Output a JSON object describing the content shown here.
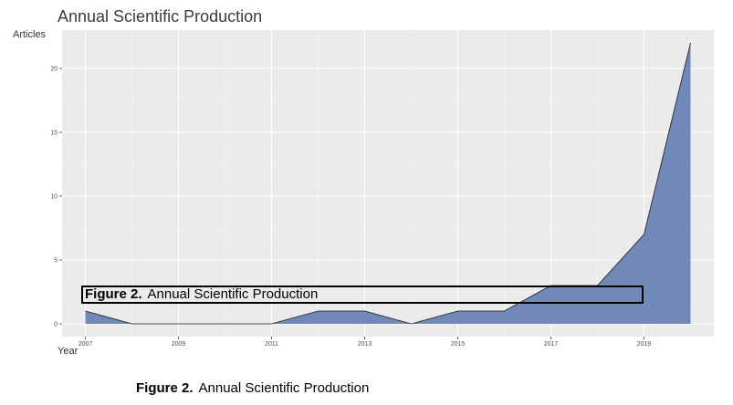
{
  "chart_data": {
    "type": "area",
    "title": "Annual Scientific Production",
    "xlabel": "Year",
    "ylabel": "Articles",
    "x": [
      2007,
      2008,
      2009,
      2010,
      2011,
      2012,
      2013,
      2014,
      2015,
      2016,
      2017,
      2018,
      2019,
      2020
    ],
    "values": [
      1,
      0,
      0,
      0,
      0,
      1,
      1,
      0,
      1,
      1,
      3,
      3,
      7,
      22
    ],
    "x_ticks": [
      "2007",
      "2009",
      "2011",
      "2013",
      "2015",
      "2017",
      "2019"
    ],
    "y_ticks": [
      "0",
      "5",
      "10",
      "15",
      "20"
    ],
    "xlim": [
      2006.5,
      2020.5
    ],
    "ylim": [
      -1,
      23
    ],
    "grid": true,
    "legend": "none",
    "fill_color": "#7089b8",
    "panel_color": "#ebebeb"
  },
  "captions": {
    "overlay": {
      "label": "Figure 2.",
      "text": "Annual Scientific Production"
    },
    "bottom": {
      "label": "Figure 2.",
      "text": "Annual Scientific Production"
    }
  }
}
